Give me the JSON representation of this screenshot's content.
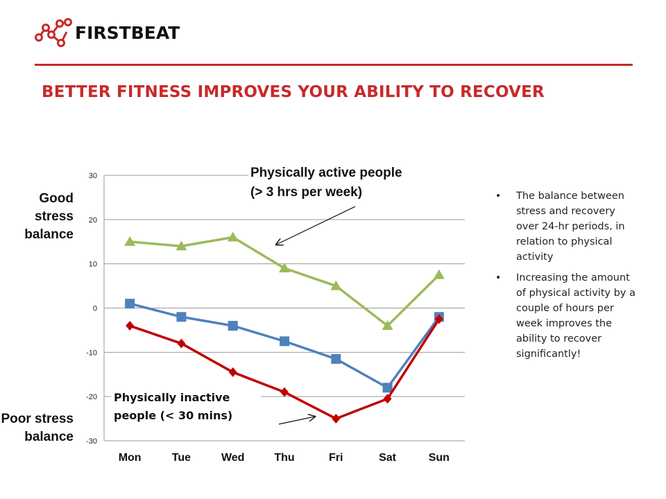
{
  "brand": {
    "name": "FIRSTBEAT",
    "accent": "#c8292a"
  },
  "page": {
    "title": "BETTER FITNESS IMPROVES YOUR ABILITY TO RECOVER"
  },
  "side_labels": {
    "good": "Good stress balance",
    "poor": "Poor stress balance"
  },
  "annotations": {
    "active_line1": "Physically active people",
    "active_line2": "(> 3 hrs per week)",
    "inactive_line1": "Physically inactive",
    "inactive_line2": "people (< 30 mins)"
  },
  "bullets": [
    "The balance between stress and recovery over 24-hr periods, in relation to physical activity",
    "Increasing the amount of physical activity by a couple of hours per week improves the ability to recover significantly!"
  ],
  "chart_data": {
    "type": "line",
    "categories": [
      "Mon",
      "Tue",
      "Wed",
      "Thu",
      "Fri",
      "Sat",
      "Sun"
    ],
    "ylim": [
      -30,
      30
    ],
    "yticks": [
      30,
      20,
      10,
      0,
      -10,
      -20,
      -30
    ],
    "grid": true,
    "series": [
      {
        "id": "active",
        "color": "#9bbb59",
        "marker": "triangle",
        "values": [
          15,
          14,
          16,
          9,
          5,
          -4,
          7.5
        ]
      },
      {
        "id": "middle",
        "color": "#4f81bd",
        "marker": "square",
        "values": [
          1,
          -2,
          -4,
          -7.5,
          -11.5,
          -18,
          -2
        ]
      },
      {
        "id": "inactive",
        "color": "#c00000",
        "marker": "diamond",
        "values": [
          -4,
          -8,
          -14.5,
          -19,
          -25,
          -20.5,
          -2.5
        ]
      }
    ]
  }
}
